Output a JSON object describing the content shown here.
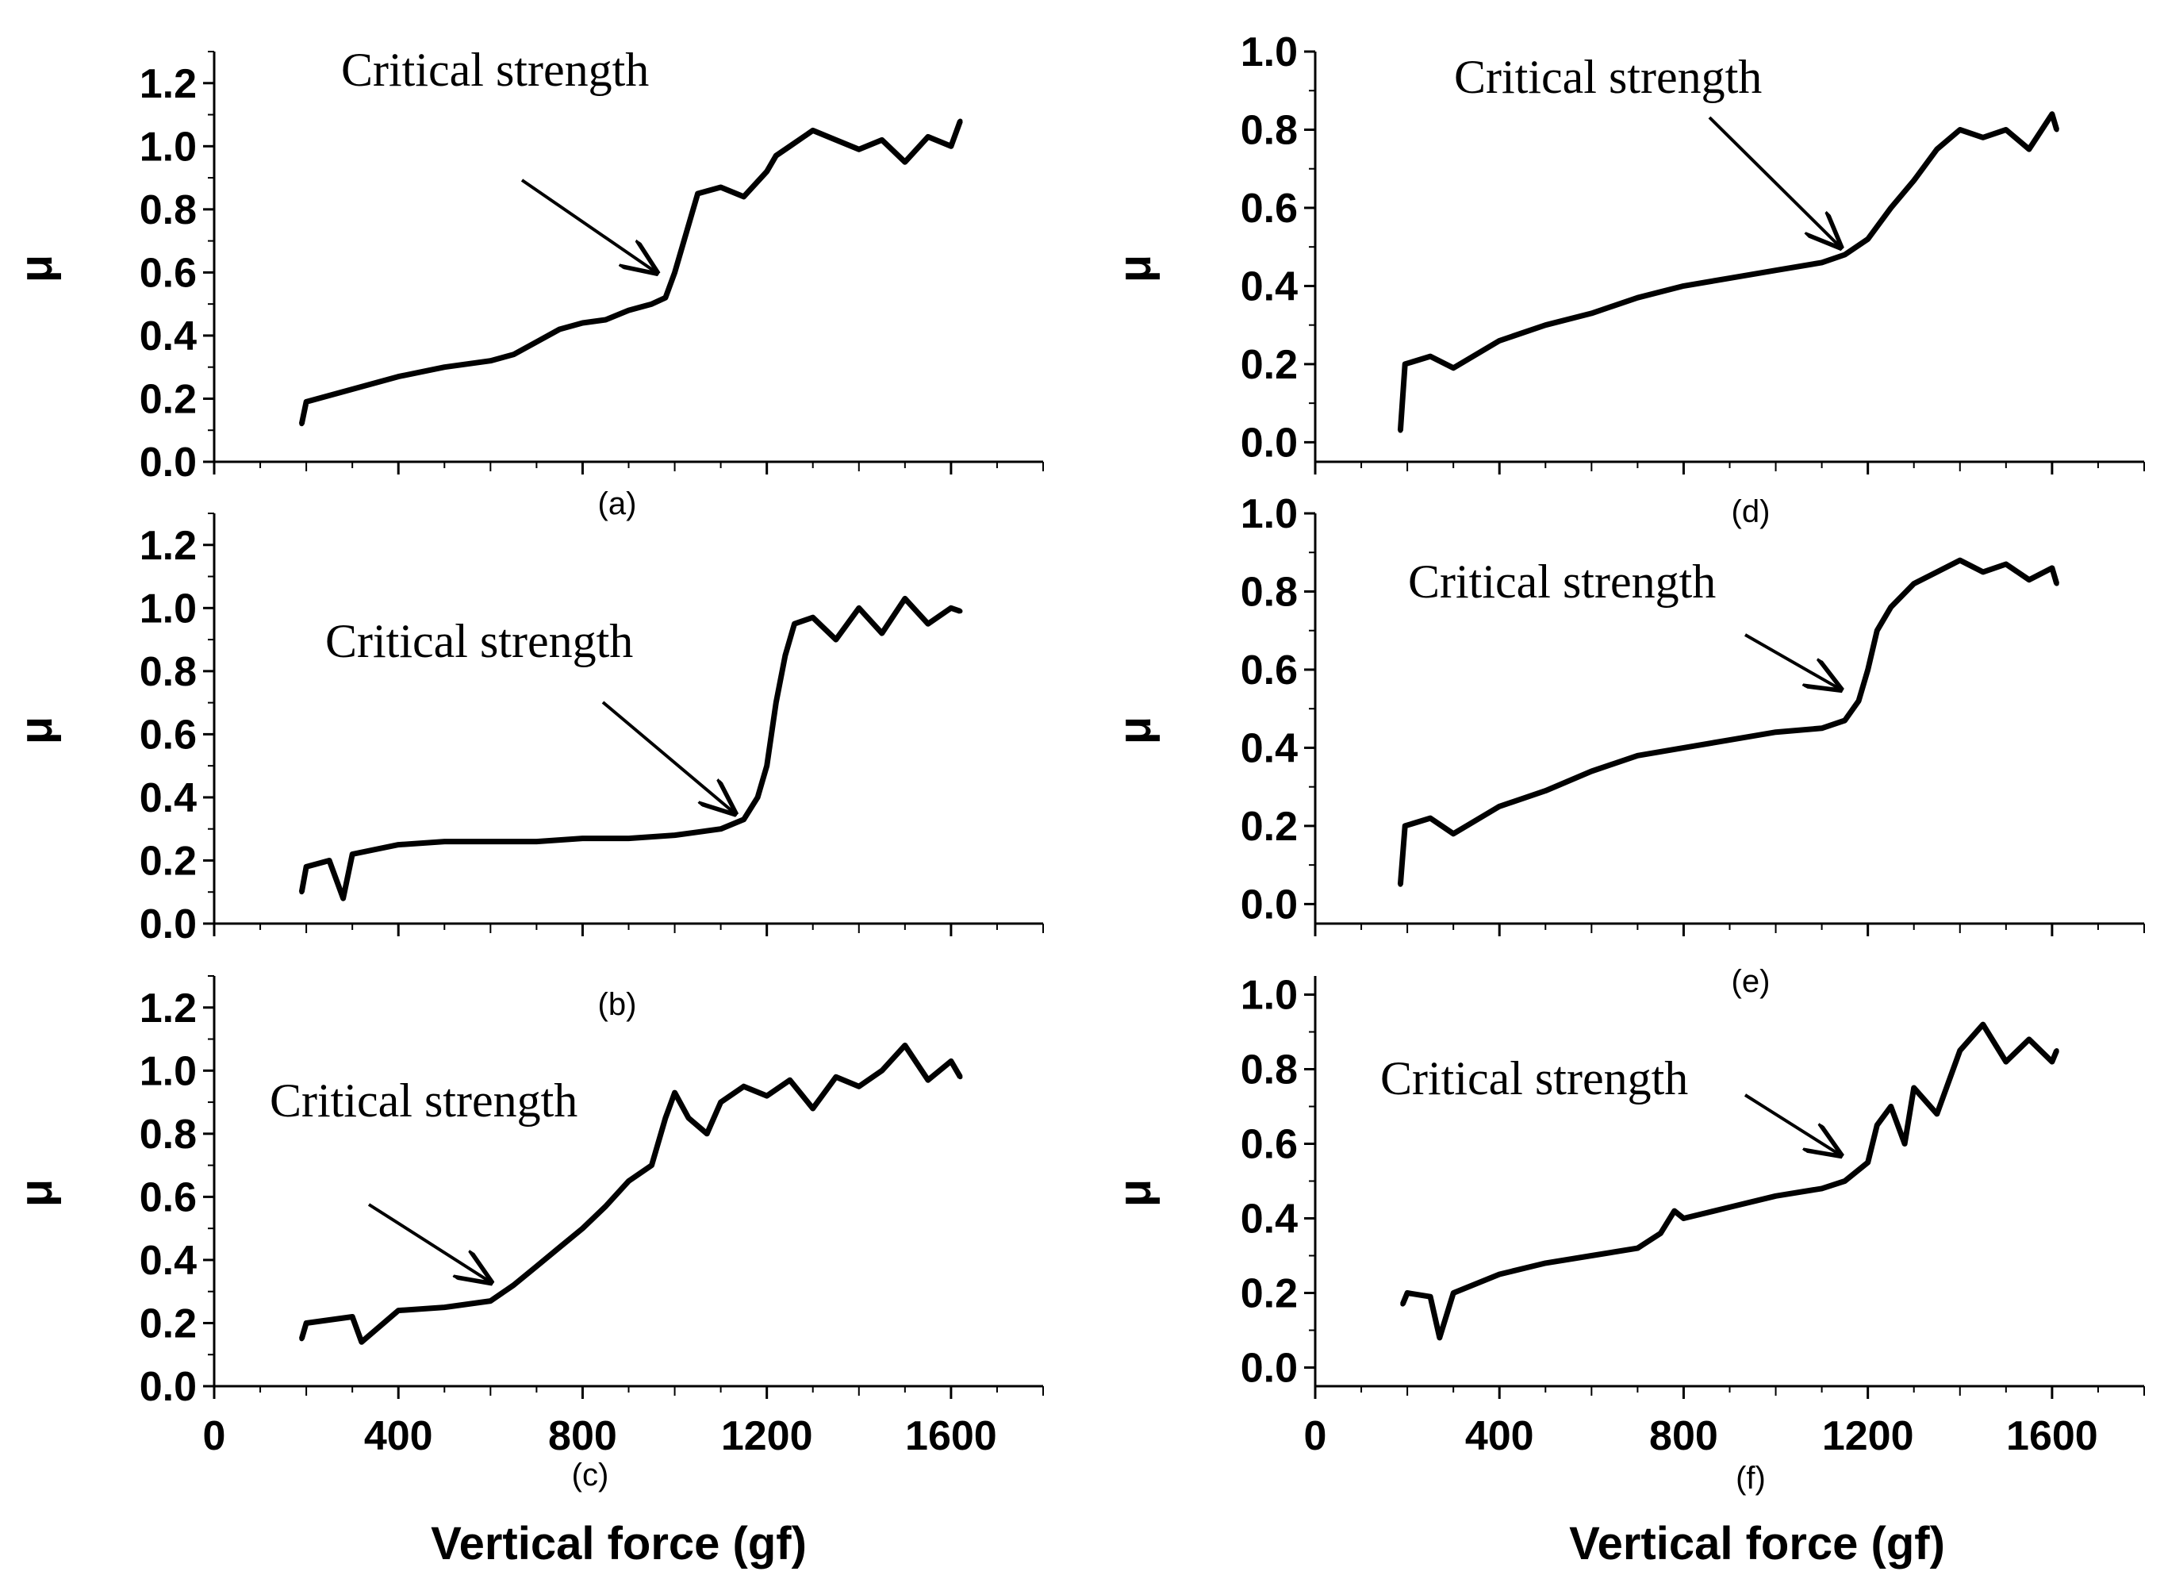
{
  "figure": {
    "xlabel": "Vertical force  (gf)",
    "ylabel": "μ"
  },
  "chart_data": [
    {
      "type": "line",
      "panel_label": "(a)",
      "title": "",
      "xlabel": "Vertical force  (gf)",
      "ylabel": "μ",
      "xlim": [
        0,
        1800
      ],
      "ylim": [
        0,
        1.3
      ],
      "xticks": [
        "0",
        "400",
        "800",
        "1200",
        "1600"
      ],
      "yticks": [
        "0.0",
        "0.2",
        "0.4",
        "0.6",
        "0.8",
        "1.0",
        "1.2"
      ],
      "annotation": {
        "text": "Critical strength",
        "points_to": [
          960,
          0.6
        ]
      },
      "series": [
        {
          "name": "μ",
          "x": [
            190,
            200,
            300,
            400,
            500,
            600,
            650,
            700,
            750,
            800,
            850,
            900,
            950,
            980,
            1000,
            1020,
            1050,
            1100,
            1150,
            1200,
            1220,
            1250,
            1300,
            1350,
            1400,
            1450,
            1500,
            1550,
            1600,
            1620
          ],
          "y": [
            0.12,
            0.19,
            0.23,
            0.27,
            0.3,
            0.32,
            0.34,
            0.38,
            0.42,
            0.44,
            0.45,
            0.48,
            0.5,
            0.52,
            0.6,
            0.7,
            0.85,
            0.87,
            0.84,
            0.92,
            0.97,
            1.0,
            1.05,
            1.02,
            0.99,
            1.02,
            0.95,
            1.03,
            1.0,
            1.08
          ]
        }
      ]
    },
    {
      "type": "line",
      "panel_label": "(b)",
      "title": "",
      "xlabel": "Vertical force  (gf)",
      "ylabel": "μ",
      "xlim": [
        0,
        1800
      ],
      "ylim": [
        0,
        1.3
      ],
      "xticks": [
        "0",
        "400",
        "800",
        "1200",
        "1600"
      ],
      "yticks": [
        "0.0",
        "0.2",
        "0.4",
        "0.6",
        "0.8",
        "1.0",
        "1.2"
      ],
      "annotation": {
        "text": "Critical strength",
        "points_to": [
          1130,
          0.35
        ]
      },
      "series": [
        {
          "name": "μ",
          "x": [
            190,
            200,
            250,
            280,
            300,
            400,
            500,
            600,
            700,
            800,
            900,
            1000,
            1050,
            1100,
            1150,
            1180,
            1200,
            1220,
            1240,
            1260,
            1300,
            1350,
            1400,
            1450,
            1500,
            1550,
            1600,
            1620
          ],
          "y": [
            0.1,
            0.18,
            0.2,
            0.08,
            0.22,
            0.25,
            0.26,
            0.26,
            0.26,
            0.27,
            0.27,
            0.28,
            0.29,
            0.3,
            0.33,
            0.4,
            0.5,
            0.7,
            0.85,
            0.95,
            0.97,
            0.9,
            1.0,
            0.92,
            1.03,
            0.95,
            1.0,
            0.99
          ]
        }
      ]
    },
    {
      "type": "line",
      "panel_label": "(c)",
      "title": "",
      "xlabel": "Vertical force  (gf)",
      "ylabel": "μ",
      "xlim": [
        0,
        1800
      ],
      "ylim": [
        0,
        1.3
      ],
      "xticks": [
        "0",
        "400",
        "800",
        "1200",
        "1600"
      ],
      "yticks": [
        "0.0",
        "0.2",
        "0.4",
        "0.6",
        "0.8",
        "1.0",
        "1.2"
      ],
      "annotation": {
        "text": "Critical strength",
        "points_to": [
          600,
          0.33
        ]
      },
      "series": [
        {
          "name": "μ",
          "x": [
            190,
            200,
            300,
            320,
            400,
            500,
            600,
            650,
            700,
            750,
            800,
            850,
            900,
            950,
            980,
            1000,
            1030,
            1070,
            1100,
            1150,
            1200,
            1250,
            1300,
            1350,
            1400,
            1450,
            1500,
            1550,
            1600,
            1620
          ],
          "y": [
            0.15,
            0.2,
            0.22,
            0.14,
            0.24,
            0.25,
            0.27,
            0.32,
            0.38,
            0.44,
            0.5,
            0.57,
            0.65,
            0.7,
            0.85,
            0.93,
            0.85,
            0.8,
            0.9,
            0.95,
            0.92,
            0.97,
            0.88,
            0.98,
            0.95,
            1.0,
            1.08,
            0.97,
            1.03,
            0.98
          ]
        }
      ]
    },
    {
      "type": "line",
      "panel_label": "(d)",
      "title": "",
      "xlabel": "Vertical force  (gf)",
      "ylabel": "μ",
      "xlim": [
        0,
        1800
      ],
      "ylim": [
        -0.05,
        1.0
      ],
      "xticks": [
        "0",
        "400",
        "800",
        "1200",
        "1600"
      ],
      "yticks": [
        "0.0",
        "0.2",
        "0.4",
        "0.6",
        "0.8",
        "1.0"
      ],
      "annotation": {
        "text": "Critical strength",
        "points_to": [
          1140,
          0.5
        ]
      },
      "series": [
        {
          "name": "μ",
          "x": [
            185,
            195,
            250,
            300,
            400,
            500,
            600,
            700,
            800,
            900,
            1000,
            1100,
            1150,
            1200,
            1250,
            1300,
            1350,
            1400,
            1450,
            1500,
            1550,
            1600,
            1610
          ],
          "y": [
            0.03,
            0.2,
            0.22,
            0.19,
            0.26,
            0.3,
            0.33,
            0.37,
            0.4,
            0.42,
            0.44,
            0.46,
            0.48,
            0.52,
            0.6,
            0.67,
            0.75,
            0.8,
            0.78,
            0.8,
            0.75,
            0.84,
            0.8
          ]
        }
      ]
    },
    {
      "type": "line",
      "panel_label": "(e)",
      "title": "",
      "xlabel": "Vertical force  (gf)",
      "ylabel": "μ",
      "xlim": [
        0,
        1800
      ],
      "ylim": [
        -0.05,
        1.0
      ],
      "xticks": [
        "0",
        "400",
        "800",
        "1200",
        "1600"
      ],
      "yticks": [
        "0.0",
        "0.2",
        "0.4",
        "0.6",
        "0.8",
        "1.0"
      ],
      "annotation": {
        "text": "Critical strength",
        "points_to": [
          1140,
          0.55
        ]
      },
      "series": [
        {
          "name": "μ",
          "x": [
            185,
            195,
            250,
            300,
            400,
            500,
            600,
            700,
            800,
            900,
            1000,
            1100,
            1150,
            1180,
            1200,
            1220,
            1250,
            1300,
            1350,
            1400,
            1450,
            1500,
            1550,
            1600,
            1610
          ],
          "y": [
            0.05,
            0.2,
            0.22,
            0.18,
            0.25,
            0.29,
            0.34,
            0.38,
            0.4,
            0.42,
            0.44,
            0.45,
            0.47,
            0.52,
            0.6,
            0.7,
            0.76,
            0.82,
            0.85,
            0.88,
            0.85,
            0.87,
            0.83,
            0.86,
            0.82
          ]
        }
      ]
    },
    {
      "type": "line",
      "panel_label": "(f)",
      "title": "",
      "xlabel": "Vertical force  (gf)",
      "ylabel": "μ",
      "xlim": [
        0,
        1800
      ],
      "ylim": [
        -0.05,
        1.05
      ],
      "xticks": [
        "0",
        "400",
        "800",
        "1200",
        "1600"
      ],
      "yticks": [
        "0.0",
        "0.2",
        "0.4",
        "0.6",
        "0.8",
        "1.0"
      ],
      "annotation": {
        "text": "Critical strength",
        "points_to": [
          1140,
          0.57
        ]
      },
      "series": [
        {
          "name": "μ",
          "x": [
            190,
            200,
            250,
            270,
            300,
            400,
            500,
            600,
            700,
            750,
            780,
            800,
            900,
            1000,
            1100,
            1150,
            1200,
            1220,
            1250,
            1280,
            1300,
            1350,
            1400,
            1450,
            1500,
            1550,
            1600,
            1610
          ],
          "y": [
            0.17,
            0.2,
            0.19,
            0.08,
            0.2,
            0.25,
            0.28,
            0.3,
            0.32,
            0.36,
            0.42,
            0.4,
            0.43,
            0.46,
            0.48,
            0.5,
            0.55,
            0.65,
            0.7,
            0.6,
            0.75,
            0.68,
            0.85,
            0.92,
            0.82,
            0.88,
            0.82,
            0.85
          ]
        }
      ]
    }
  ]
}
